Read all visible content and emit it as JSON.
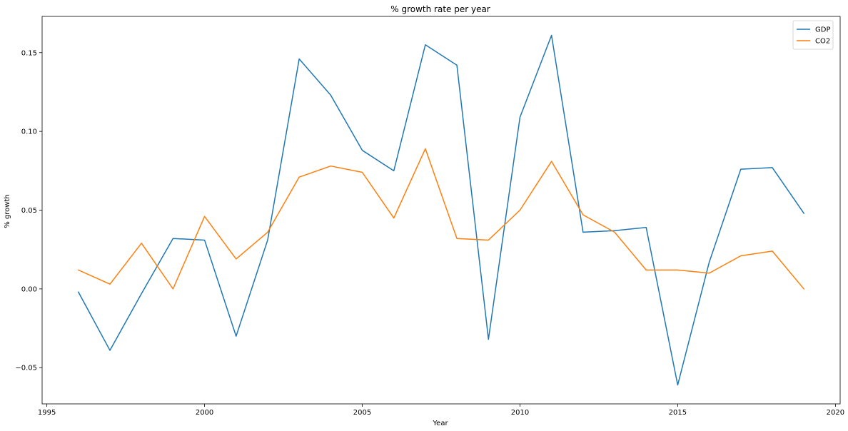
{
  "chart_data": {
    "type": "line",
    "title": "% growth rate per year",
    "xlabel": "Year",
    "ylabel": "% growth",
    "xlim": [
      1994.85,
      2020.15
    ],
    "ylim": [
      -0.073,
      0.173
    ],
    "xticks": [
      1995,
      2000,
      2005,
      2010,
      2015,
      2020
    ],
    "xtick_labels": [
      "1995",
      "2000",
      "2005",
      "2010",
      "2015",
      "2020"
    ],
    "yticks": [
      -0.05,
      0.0,
      0.05,
      0.1,
      0.15
    ],
    "ytick_labels": [
      "−0.05",
      "0.00",
      "0.05",
      "0.10",
      "0.15"
    ],
    "grid": false,
    "legend_position": "upper right",
    "x": [
      1996,
      1997,
      1998,
      1999,
      2000,
      2001,
      2002,
      2003,
      2004,
      2005,
      2006,
      2007,
      2008,
      2009,
      2010,
      2011,
      2012,
      2013,
      2014,
      2015,
      2016,
      2017,
      2018,
      2019
    ],
    "series": [
      {
        "name": "GDP",
        "color": "#1f77b4",
        "values": [
          -0.002,
          -0.039,
          -0.003,
          0.032,
          0.031,
          -0.03,
          0.031,
          0.146,
          0.123,
          0.088,
          0.075,
          0.155,
          0.142,
          -0.032,
          0.109,
          0.161,
          0.036,
          0.037,
          0.039,
          -0.061,
          0.017,
          0.076,
          0.077,
          0.048
        ]
      },
      {
        "name": "CO2",
        "color": "#ff7f0e",
        "values": [
          0.012,
          0.003,
          0.029,
          0.0,
          0.046,
          0.019,
          0.036,
          0.071,
          0.078,
          0.074,
          0.045,
          0.089,
          0.032,
          0.031,
          0.05,
          0.081,
          0.047,
          0.036,
          0.012,
          0.012,
          0.01,
          0.021,
          0.024,
          0.0
        ]
      }
    ]
  }
}
